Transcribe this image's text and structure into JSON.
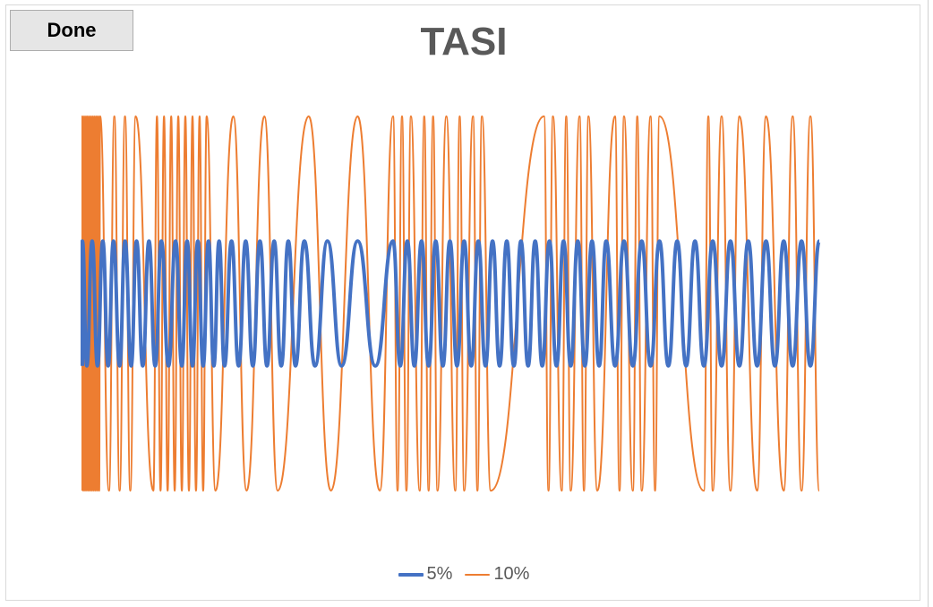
{
  "toolbar": {
    "done_label": "Done"
  },
  "chart_data": {
    "type": "line",
    "title": "TASI",
    "xlabel": "",
    "ylabel": "",
    "grid": false,
    "legend_position": "bottom",
    "ylim": [
      -1.5,
      1.5
    ],
    "series": [
      {
        "name": "5%",
        "color": "#4472c4",
        "switch_x": [
          0,
          5,
          11,
          17,
          23,
          29,
          35,
          42,
          48,
          55,
          61,
          68,
          75,
          82,
          89,
          97,
          105,
          112,
          118,
          124,
          130,
          136,
          142,
          148,
          154,
          160,
          168,
          176,
          184,
          192,
          200,
          208,
          216,
          224,
          232,
          240,
          250,
          262,
          276,
          292,
          310,
          330,
          350,
          358,
          366,
          374,
          382,
          390,
          398,
          406,
          414,
          422,
          430,
          438,
          446,
          454,
          462,
          470,
          478,
          486,
          494,
          502,
          510,
          518,
          526,
          534,
          542,
          550,
          558,
          566,
          574,
          582,
          590,
          600,
          610,
          620,
          630,
          640,
          650,
          660,
          670,
          680,
          690,
          700,
          710,
          720,
          730,
          740,
          750,
          760,
          770,
          780,
          790,
          800,
          810,
          820,
          830
        ],
        "min": -0.5,
        "max": 0.5
      },
      {
        "name": "10%",
        "color": "#ed7d31",
        "switch_x": [
          0,
          1,
          2,
          3,
          4,
          5,
          6,
          7,
          8,
          9,
          10,
          11,
          12,
          13,
          14,
          15,
          16,
          17,
          18,
          19,
          20,
          30,
          36,
          42,
          48,
          54,
          60,
          80,
          84,
          88,
          92,
          96,
          100,
          104,
          108,
          112,
          116,
          120,
          124,
          128,
          132,
          136,
          140,
          150,
          170,
          185,
          205,
          220,
          255,
          280,
          310,
          335,
          350,
          355,
          360,
          365,
          370,
          380,
          385,
          390,
          395,
          400,
          410,
          420,
          425,
          430,
          440,
          445,
          450,
          460,
          520,
          525,
          530,
          540,
          545,
          550,
          560,
          565,
          570,
          580,
          600,
          605,
          610,
          620,
          625,
          630,
          640,
          645,
          650,
          700,
          705,
          710,
          720,
          730,
          740,
          760,
          770,
          790,
          800,
          810,
          820,
          830
        ],
        "min": -1.5,
        "max": 1.5
      }
    ]
  }
}
